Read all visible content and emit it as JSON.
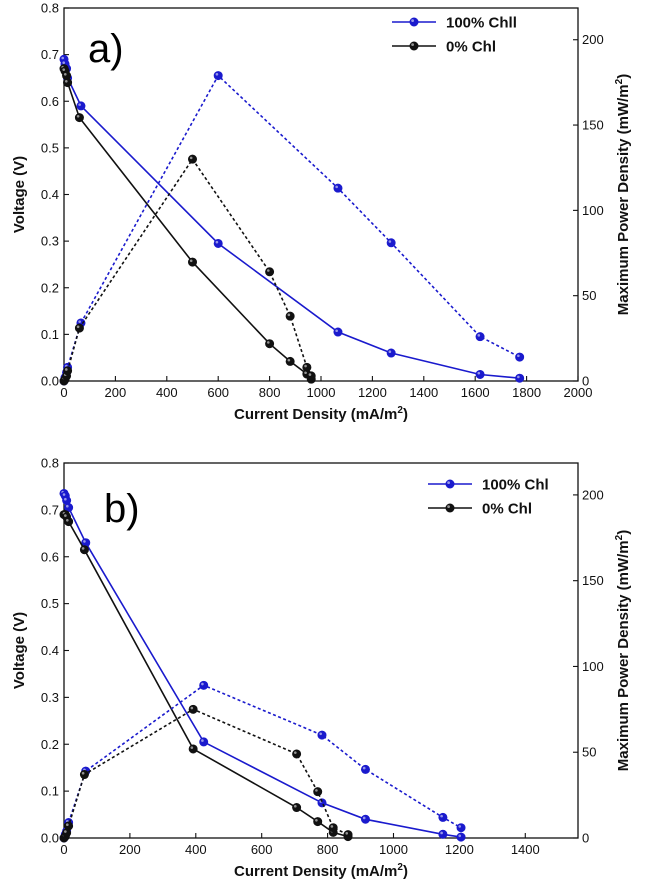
{
  "chart_data": [
    {
      "panel_label": "a)",
      "type": "line",
      "xlabel": "Current Density (mA/m",
      "xlabel_sup": "2",
      "xlabel_tail": ")",
      "ylabel": "Voltage (V)",
      "y2label": "Maximum Power Density (mW/m",
      "y2label_sup": "2",
      "y2label_tail": ")",
      "xlim": [
        0,
        2000
      ],
      "ylim": [
        0,
        0.8
      ],
      "y2lim": [
        0,
        218.6
      ],
      "xticks": [
        "0",
        "200",
        "400",
        "600",
        "800",
        "1000",
        "1200",
        "1400",
        "1600",
        "1800",
        "2000"
      ],
      "yticks": [
        "0.0",
        "0.1",
        "0.2",
        "0.3",
        "0.4",
        "0.5",
        "0.6",
        "0.7",
        "0.8"
      ],
      "y2ticks": [
        "0",
        "50",
        "100",
        "150",
        "200"
      ],
      "legend_position": "top-right",
      "series": [
        {
          "name": "100% Chll",
          "axis": "left",
          "style": "solid",
          "color": "#1a1acd",
          "x": [
            0,
            4,
            10,
            14,
            66,
            600,
            1066,
            1273,
            1619,
            1773
          ],
          "y": [
            0.69,
            0.68,
            0.67,
            0.65,
            0.59,
            0.295,
            0.105,
            0.06,
            0.014,
            0.006
          ]
        },
        {
          "name": "0% Chl",
          "axis": "left",
          "style": "solid",
          "color": "#111111",
          "x": [
            0,
            4,
            10,
            14,
            60,
            500,
            800,
            880,
            945,
            962
          ],
          "y": [
            0.67,
            0.665,
            0.655,
            0.64,
            0.565,
            0.255,
            0.08,
            0.042,
            0.015,
            0.004
          ]
        },
        {
          "name": "",
          "axis": "right",
          "style": "dotted",
          "color": "#1a1acd",
          "x": [
            0,
            4,
            10,
            14,
            66,
            600,
            1066,
            1273,
            1619,
            1773
          ],
          "y": [
            0,
            2,
            5,
            8,
            34,
            179,
            113,
            81,
            26,
            14
          ]
        },
        {
          "name": "",
          "axis": "right",
          "style": "dotted",
          "color": "#111111",
          "x": [
            0,
            4,
            10,
            14,
            60,
            500,
            800,
            880,
            945,
            962
          ],
          "y": [
            0,
            1,
            3,
            6,
            31,
            130,
            64,
            38,
            8,
            3
          ]
        }
      ]
    },
    {
      "panel_label": "b)",
      "type": "line",
      "xlabel": "Current Density (mA/m",
      "xlabel_sup": "2",
      "xlabel_tail": ")",
      "ylabel": "Voltage (V)",
      "y2label": "Maximum Power Density (mW/m",
      "y2label_sup": "2",
      "y2label_tail": ")",
      "xlim": [
        0,
        1560
      ],
      "ylim": [
        0,
        0.8
      ],
      "y2lim": [
        0,
        218.6
      ],
      "xticks": [
        "0",
        "200",
        "400",
        "600",
        "800",
        "1000",
        "1200",
        "1400"
      ],
      "yticks": [
        "0.0",
        "0.1",
        "0.2",
        "0.3",
        "0.4",
        "0.5",
        "0.6",
        "0.7",
        "0.8"
      ],
      "y2ticks": [
        "0",
        "50",
        "100",
        "150",
        "200"
      ],
      "legend_position": "top-right",
      "series": [
        {
          "name": "100% Chl",
          "axis": "left",
          "style": "solid",
          "color": "#1a1acd",
          "x": [
            0,
            4,
            8,
            14,
            66,
            424,
            783,
            915,
            1150,
            1205
          ],
          "y": [
            0.735,
            0.73,
            0.72,
            0.705,
            0.63,
            0.205,
            0.075,
            0.04,
            0.008,
            0.002
          ]
        },
        {
          "name": "0% Chl",
          "axis": "left",
          "style": "solid",
          "color": "#111111",
          "x": [
            0,
            4,
            8,
            14,
            62,
            392,
            706,
            770,
            817,
            862
          ],
          "y": [
            0.69,
            0.69,
            0.685,
            0.675,
            0.615,
            0.19,
            0.065,
            0.035,
            0.012,
            0.003
          ]
        },
        {
          "name": "",
          "axis": "right",
          "style": "dotted",
          "color": "#1a1acd",
          "x": [
            0,
            4,
            8,
            14,
            66,
            424,
            783,
            915,
            1150,
            1205
          ],
          "y": [
            0,
            2,
            4,
            9,
            39,
            89,
            60,
            40,
            12,
            6
          ]
        },
        {
          "name": "",
          "axis": "right",
          "style": "dotted",
          "color": "#111111",
          "x": [
            0,
            4,
            8,
            14,
            62,
            392,
            706,
            770,
            817,
            862
          ],
          "y": [
            0,
            1,
            3,
            7,
            37,
            75,
            49,
            27,
            6,
            2
          ]
        }
      ]
    }
  ]
}
